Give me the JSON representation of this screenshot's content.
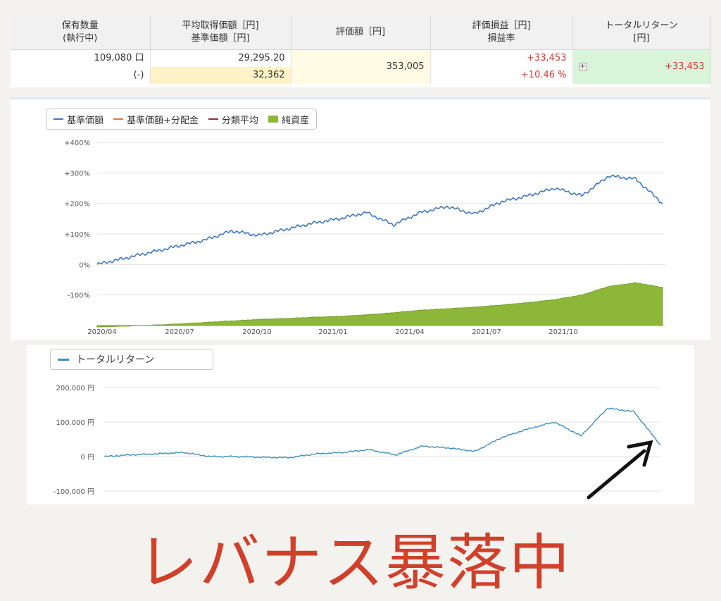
{
  "table": {
    "headers": [
      [
        "保有数量",
        "(執行中)"
      ],
      [
        "平均取得価額［円]",
        "基準価額［円]"
      ],
      [
        "評価額［円]"
      ],
      [
        "評価損益［円]",
        "損益率"
      ],
      [
        "トータルリターン",
        "[円]"
      ]
    ],
    "quantity": "109,080 口",
    "quantity_pending": "(-)",
    "avg_price": "29,295.20",
    "base_price": "32,362",
    "valuation": "353,005",
    "pl": "+33,453",
    "pl_rate": "+10.46 %",
    "total_return": "+33,453",
    "expand_icon": "plus-icon"
  },
  "chart1": {
    "legend": [
      {
        "label": "基準価額",
        "color": "#3c78c8",
        "kind": "line"
      },
      {
        "label": "基準価額+分配金",
        "color": "#e8772e",
        "kind": "line"
      },
      {
        "label": "分類平均",
        "color": "#9a2d35",
        "kind": "line"
      },
      {
        "label": "純資産",
        "color": "#8db739",
        "kind": "box"
      }
    ],
    "y_ticks": [
      "+400%",
      "+300%",
      "+200%",
      "+100%",
      "0%",
      "-100%"
    ],
    "x_ticks": [
      "2020/04",
      "2020/07",
      "2020/10",
      "2021/01",
      "2021/04",
      "2021/07",
      "2021/10"
    ]
  },
  "chart2": {
    "legend_label": "トータルリターン",
    "legend_color": "#3a8fc2",
    "y_ticks": [
      "200,000 円",
      "100,000 円",
      "0 円",
      "-100,000 円"
    ]
  },
  "chart_data": [
    {
      "type": "line",
      "xlabel": "",
      "ylabel": "",
      "ylim": [
        -200,
        400
      ],
      "x": [
        "2020/04",
        "2020/05",
        "2020/06",
        "2020/07",
        "2020/08",
        "2020/09",
        "2020/10",
        "2020/11",
        "2020/12",
        "2021/01",
        "2021/02",
        "2021/03",
        "2021/04",
        "2021/05",
        "2021/06",
        "2021/07",
        "2021/08",
        "2021/09",
        "2021/10",
        "2021/11",
        "2021/12",
        "2022/01"
      ],
      "series": [
        {
          "name": "基準価額",
          "values": [
            0,
            20,
            40,
            60,
            80,
            110,
            95,
            115,
            135,
            150,
            170,
            130,
            170,
            190,
            165,
            205,
            225,
            250,
            225,
            290,
            280,
            200
          ]
        },
        {
          "name": "純資産",
          "values": [
            -205,
            -202,
            -199,
            -195,
            -190,
            -185,
            -180,
            -177,
            -173,
            -170,
            -165,
            -158,
            -150,
            -145,
            -140,
            -133,
            -125,
            -115,
            -100,
            -72,
            -60,
            -75
          ]
        }
      ]
    },
    {
      "type": "line",
      "xlabel": "",
      "ylabel": "",
      "ylim": [
        -100000,
        200000
      ],
      "x": [
        "2020/04",
        "2020/05",
        "2020/06",
        "2020/07",
        "2020/08",
        "2020/09",
        "2020/10",
        "2020/11",
        "2020/12",
        "2021/01",
        "2021/02",
        "2021/03",
        "2021/04",
        "2021/05",
        "2021/06",
        "2021/07",
        "2021/08",
        "2021/09",
        "2021/10",
        "2021/11",
        "2021/12",
        "2022/01"
      ],
      "series": [
        {
          "name": "トータルリターン",
          "values": [
            0,
            5000,
            8000,
            12000,
            0,
            0,
            -2000,
            -3000,
            8000,
            12000,
            20000,
            5000,
            30000,
            25000,
            15000,
            55000,
            80000,
            100000,
            60000,
            140000,
            130000,
            33453
          ]
        }
      ]
    }
  ],
  "caption": "レバナス暴落中"
}
